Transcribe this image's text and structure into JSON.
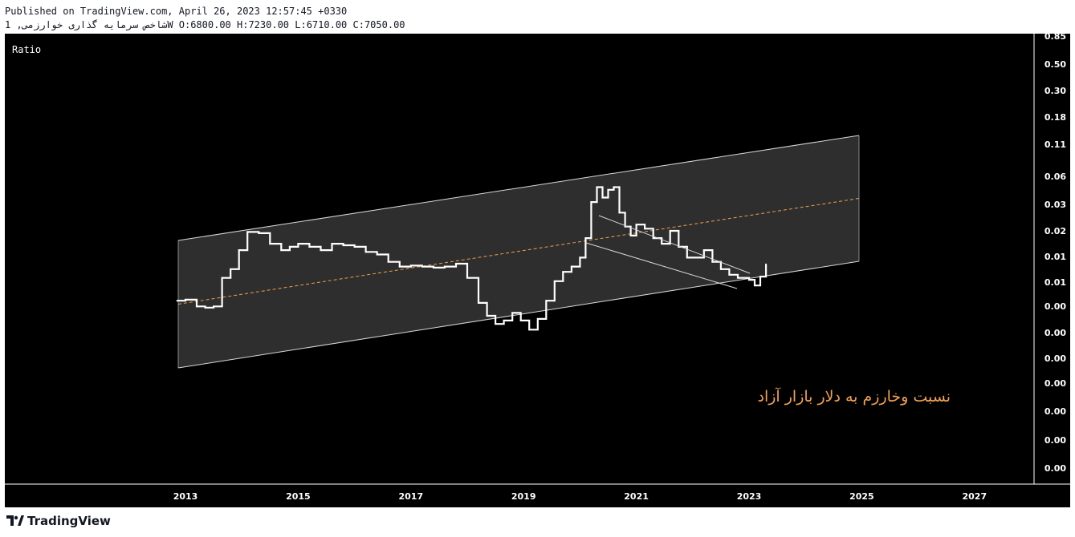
{
  "header": {
    "published_line": "Published on TradingView.com, April 26, 2023 12:57:45 +0330",
    "symbol_line": "شاخص سرمایه گذاری خوارزمی, 1W O:6800.00 H:7230.00 L:6710.00 C:7050.00"
  },
  "footer": {
    "brand": "TradingView"
  },
  "colors": {
    "background": "#000000",
    "series": "#ffffff",
    "channel_fill": "#2e2e2e",
    "channel_lines": "#d9d9d9",
    "median_line": "#f0a050",
    "annotation": "#f0a050",
    "axis_text": "#ffffff"
  },
  "chart_data": {
    "type": "line",
    "pane_label": "Ratio",
    "y_scale": "log",
    "x_ticks": [
      "2013",
      "2015",
      "2017",
      "2019",
      "2021",
      "2023",
      "2025",
      "2027"
    ],
    "y_ticks": [
      "0.85",
      "0.50",
      "0.30",
      "0.18",
      "0.11",
      "0.06",
      "0.03",
      "0.02",
      "0.01",
      "0.01",
      "0.00",
      "0.00",
      "0.00",
      "0.00",
      "0.00",
      "0.00",
      "0.00",
      "0.00"
    ],
    "series": [
      {
        "x": [
          2012.85,
          2013.0,
          2013.2,
          2013.35,
          2013.5,
          2013.65,
          2013.8,
          2013.95,
          2014.1,
          2014.3,
          2014.5,
          2014.7,
          2014.85,
          2015.0,
          2015.2,
          2015.4,
          2015.6,
          2015.8,
          2016.0,
          2016.2,
          2016.4,
          2016.6,
          2016.8,
          2017.0,
          2017.2,
          2017.4,
          2017.6,
          2017.8,
          2018.0,
          2018.2,
          2018.35,
          2018.5,
          2018.65,
          2018.8,
          2018.95,
          2019.1,
          2019.25,
          2019.4,
          2019.55,
          2019.7,
          2019.85,
          2020.0,
          2020.1,
          2020.2,
          2020.3,
          2020.4,
          2020.5,
          2020.6,
          2020.7,
          2020.8,
          2020.9,
          2021.0,
          2021.15,
          2021.3,
          2021.45,
          2021.6,
          2021.75,
          2021.9,
          2022.05,
          2022.2,
          2022.35,
          2022.5,
          2022.65,
          2022.8,
          2022.9,
          2023.0,
          2023.1,
          2023.2,
          2023.3
        ],
        "values": [
          0.0042,
          0.0043,
          0.0037,
          0.0036,
          0.0037,
          0.007,
          0.0085,
          0.013,
          0.0195,
          0.019,
          0.015,
          0.013,
          0.014,
          0.015,
          0.014,
          0.013,
          0.015,
          0.0145,
          0.014,
          0.0125,
          0.0118,
          0.01,
          0.009,
          0.0092,
          0.009,
          0.0088,
          0.009,
          0.0096,
          0.007,
          0.004,
          0.003,
          0.0025,
          0.0027,
          0.0032,
          0.0027,
          0.0022,
          0.0028,
          0.0042,
          0.0065,
          0.008,
          0.009,
          0.011,
          0.017,
          0.038,
          0.053,
          0.042,
          0.05,
          0.053,
          0.03,
          0.022,
          0.018,
          0.023,
          0.021,
          0.017,
          0.015,
          0.02,
          0.014,
          0.011,
          0.011,
          0.013,
          0.01,
          0.0085,
          0.0075,
          0.007,
          0.007,
          0.0067,
          0.0059,
          0.0072,
          0.0095
        ]
      }
    ],
    "annotations": [
      "نسبت وخارزم به دلار بازار آزاد"
    ],
    "grid": false
  }
}
